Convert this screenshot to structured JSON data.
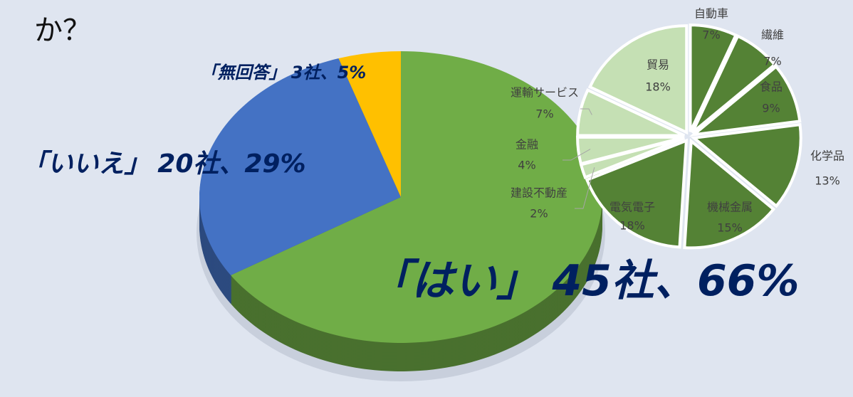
{
  "chart_data": [
    {
      "type": "pie3d",
      "title": "か？",
      "categories": [
        "「はい」",
        "「いいえ」",
        "「無回答」"
      ],
      "count_labels": [
        "45社、",
        "20社、",
        "3社、"
      ],
      "values": [
        66,
        29,
        5
      ],
      "value_labels": [
        "66%",
        "29%",
        "5%"
      ],
      "colors": [
        "#70ad47",
        "#4472c4",
        "#ffc000"
      ]
    },
    {
      "type": "pie",
      "categories": [
        "自動車",
        "繊維",
        "食品",
        "化学品",
        "機械金属",
        "電気電子",
        "建設不動産",
        "金融",
        "運輸サービス",
        "貿易"
      ],
      "values": [
        7,
        7,
        9,
        13,
        15,
        18,
        2,
        4,
        7,
        18
      ],
      "value_labels": [
        "7%",
        "7%",
        "9%",
        "13%",
        "15%",
        "18%",
        "2%",
        "4%",
        "7%",
        "18%"
      ],
      "colors": [
        "#548235",
        "#548235",
        "#548235",
        "#548235",
        "#548235",
        "#548235",
        "#c5e0b4",
        "#c5e0b4",
        "#c5e0b4",
        "#c5e0b4"
      ]
    }
  ]
}
